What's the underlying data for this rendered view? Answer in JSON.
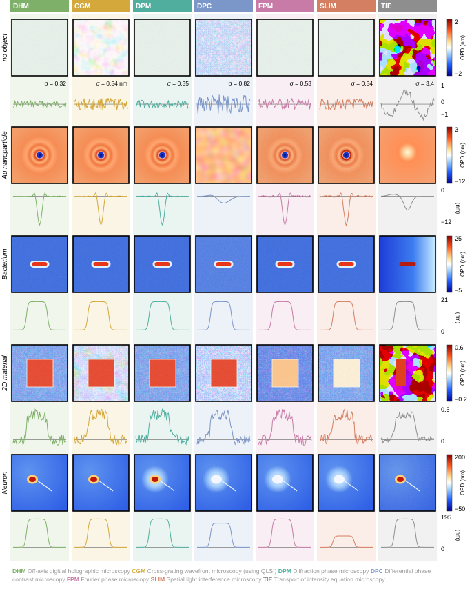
{
  "methods": [
    {
      "abbr": "DHM",
      "color": "#7fb069",
      "tint": "#f0f6ec"
    },
    {
      "abbr": "CGM",
      "color": "#d4a83a",
      "tint": "#fbf5e6"
    },
    {
      "abbr": "DPM",
      "color": "#4fae9e",
      "tint": "#eaf5f2"
    },
    {
      "abbr": "DPC",
      "color": "#7b96c8",
      "tint": "#edf1f8"
    },
    {
      "abbr": "FPM",
      "color": "#c77ba6",
      "tint": "#f8eef3"
    },
    {
      "abbr": "SLIM",
      "color": "#d47f61",
      "tint": "#fbeee9"
    },
    {
      "abbr": "TIE",
      "color": "#8e8e8e",
      "tint": "#f1f1f1"
    }
  ],
  "rows": [
    {
      "name": "no object",
      "colorbar_top": "2",
      "colorbar_bottom": "−2",
      "colorbar_label": "OPD  (nm)",
      "profile_ticks": [
        "1",
        "0",
        "−1"
      ],
      "sigmas": [
        "σ = 0.32",
        "σ = 0.54 nm",
        "σ = 0.35",
        "σ = 0.82",
        "σ = 0.53",
        "σ = 0.54",
        "σ = 3.4"
      ]
    },
    {
      "name": "Au nanoparticle",
      "colorbar_top": "3",
      "colorbar_bottom": "−12",
      "colorbar_label": "OPD  (nm)",
      "profile_ticks": [
        "0",
        "−12"
      ],
      "profile_unit": "(nm)"
    },
    {
      "name": "Bacterium",
      "colorbar_top": "25",
      "colorbar_bottom": "−5",
      "colorbar_label": "OPD  (nm)",
      "profile_ticks": [
        "21",
        "0"
      ],
      "profile_unit": "(nm)"
    },
    {
      "name": "2D material",
      "colorbar_top": "0.6",
      "colorbar_bottom": "−0.2",
      "colorbar_label": "OPD  (nm)",
      "profile_ticks": [
        "0.5",
        "0"
      ]
    },
    {
      "name": "Neuron",
      "colorbar_top": "200",
      "colorbar_bottom": "−50",
      "colorbar_label": "OPD  (nm)",
      "profile_ticks": [
        "195",
        "0"
      ],
      "profile_unit": "(nm)"
    }
  ],
  "legend": [
    {
      "abbr": "DHM",
      "text": "Off-axis digitial holographic microscopy",
      "color": "#7fb069"
    },
    {
      "abbr": "CGM",
      "text": "Cross-grating wavefront microscopy (using QLSI)",
      "color": "#d4a83a"
    },
    {
      "abbr": "DPM",
      "text": "Diffraction phase microscopy",
      "color": "#4fae9e"
    },
    {
      "abbr": "DPC",
      "text": "Differential phase contrast microscopy",
      "color": "#7b96c8"
    },
    {
      "abbr": "FPM",
      "text": "Fourier phase microscopy",
      "color": "#c77ba6"
    },
    {
      "abbr": "SLIM",
      "text": "Spatial light interference microscopy",
      "color": "#d47f61"
    },
    {
      "abbr": "TIE",
      "text": "Transport of intensity equation microscopy",
      "color": "#8e8e8e"
    }
  ]
}
